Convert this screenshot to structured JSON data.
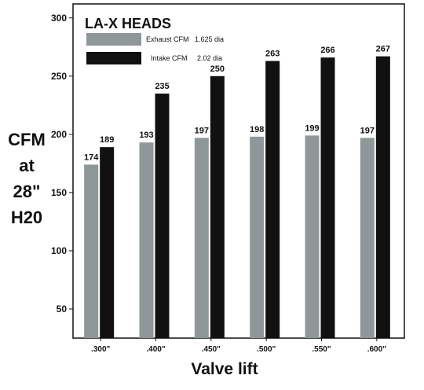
{
  "chart_data": {
    "type": "bar",
    "title": "LA-X HEADS",
    "xlabel": "Valve lift",
    "ylabel_lines": [
      "CFM",
      "at",
      "28\"",
      "H20"
    ],
    "categories": [
      ".300\"",
      ".400\"",
      ".450\"",
      ".500\"",
      ".550\"",
      ".600\""
    ],
    "series": [
      {
        "name": "Exhaust CFM",
        "spec": "1.625 dia",
        "color": "#8f9799",
        "values": [
          174,
          193,
          197,
          198,
          199,
          197
        ]
      },
      {
        "name": "Intake CFM",
        "spec": "2.02 dia",
        "color": "#111111",
        "values": [
          189,
          235,
          250,
          263,
          266,
          267
        ]
      }
    ],
    "y_ticks": [
      "50",
      "100",
      "150",
      "200",
      "250",
      "300"
    ],
    "ylim": [
      25,
      312
    ],
    "grid": false,
    "legend_position": "top-left"
  }
}
